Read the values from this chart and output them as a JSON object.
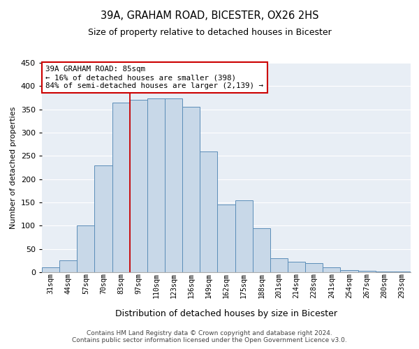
{
  "title1": "39A, GRAHAM ROAD, BICESTER, OX26 2HS",
  "title2": "Size of property relative to detached houses in Bicester",
  "xlabel": "Distribution of detached houses by size in Bicester",
  "ylabel": "Number of detached properties",
  "categories": [
    "31sqm",
    "44sqm",
    "57sqm",
    "70sqm",
    "83sqm",
    "97sqm",
    "110sqm",
    "123sqm",
    "136sqm",
    "149sqm",
    "162sqm",
    "175sqm",
    "188sqm",
    "201sqm",
    "214sqm",
    "228sqm",
    "241sqm",
    "254sqm",
    "267sqm",
    "280sqm",
    "293sqm"
  ],
  "values": [
    10,
    25,
    100,
    230,
    365,
    370,
    373,
    373,
    355,
    260,
    145,
    155,
    95,
    30,
    22,
    20,
    11,
    5,
    3,
    1,
    1
  ],
  "bar_color": "#c8d8e8",
  "bar_edge_color": "#5b8db8",
  "vline_color": "#cc0000",
  "annotation_text": "39A GRAHAM ROAD: 85sqm\n← 16% of detached houses are smaller (398)\n84% of semi-detached houses are larger (2,139) →",
  "annotation_box_color": "#ffffff",
  "annotation_box_edge_color": "#cc0000",
  "ylim": [
    0,
    450
  ],
  "yticks": [
    0,
    50,
    100,
    150,
    200,
    250,
    300,
    350,
    400,
    450
  ],
  "bg_color": "#e8eef5",
  "footer1": "Contains HM Land Registry data © Crown copyright and database right 2024.",
  "footer2": "Contains public sector information licensed under the Open Government Licence v3.0."
}
